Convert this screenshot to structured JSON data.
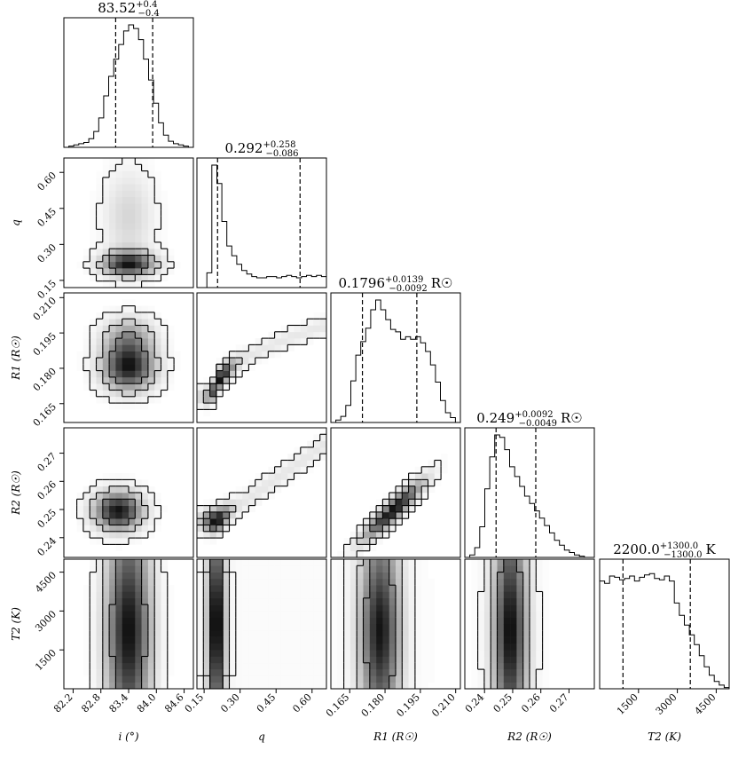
{
  "chart_data": {
    "type": "corner",
    "parameters": [
      {
        "key": "i",
        "axis_label": "i (°)",
        "ticks": [
          "82.2",
          "82.8",
          "83.4",
          "84.0",
          "84.6"
        ],
        "tick_values": [
          82.2,
          82.8,
          83.4,
          84.0,
          84.6
        ],
        "range": [
          82.0,
          84.8
        ],
        "title": {
          "base": "83.52",
          "sup": "+0.4",
          "sub": "−0.4",
          "unit": ""
        },
        "quantiles": [
          83.12,
          83.92
        ],
        "hist": [
          0,
          1,
          2,
          3,
          4,
          7,
          13,
          24,
          42,
          58,
          72,
          84,
          95,
          100,
          97,
          88,
          72,
          55,
          36,
          20,
          10,
          5,
          3,
          2,
          1,
          0
        ]
      },
      {
        "key": "q",
        "axis_label": "q",
        "ticks": [
          "0.15",
          "0.30",
          "0.45",
          "0.60"
        ],
        "tick_values": [
          0.15,
          0.3,
          0.45,
          0.6
        ],
        "range": [
          0.12,
          0.66
        ],
        "title": {
          "base": "0.292",
          "sup": "+0.258",
          "sub": "−0.086",
          "unit": ""
        },
        "quantiles": [
          0.206,
          0.55
        ],
        "hist": [
          0,
          0,
          12,
          100,
          85,
          54,
          34,
          26,
          19,
          14,
          11,
          9,
          8,
          8,
          9,
          9,
          8,
          9,
          10,
          9,
          8,
          9,
          10,
          9,
          10,
          9
        ]
      },
      {
        "key": "R1",
        "axis_label": "R1 (R☉)",
        "ticks": [
          "0.165",
          "0.180",
          "0.195",
          "0.210"
        ],
        "tick_values": [
          0.165,
          0.18,
          0.195,
          0.21
        ],
        "range": [
          0.157,
          0.212
        ],
        "title": {
          "base": "0.1796",
          "sup": "+0.0139",
          "sub": "−0.0092",
          "unit": "R☉"
        },
        "quantiles": [
          0.1704,
          0.1935
        ],
        "hist": [
          0,
          2,
          5,
          14,
          34,
          55,
          66,
          77,
          92,
          100,
          92,
          84,
          76,
          74,
          68,
          70,
          68,
          70,
          65,
          58,
          47,
          33,
          18,
          8,
          4,
          0
        ]
      },
      {
        "key": "R2",
        "axis_label": "R2 (R☉)",
        "ticks": [
          "0.24",
          "0.25",
          "0.26",
          "0.27"
        ],
        "tick_values": [
          0.24,
          0.25,
          0.26,
          0.27
        ],
        "range": [
          0.233,
          0.279
        ],
        "title": {
          "base": "0.249",
          "sup": "+0.0092",
          "sub": "−0.0049",
          "unit": "R☉"
        },
        "quantiles": [
          0.2441,
          0.2582
        ],
        "hist": [
          0,
          2,
          8,
          25,
          56,
          82,
          100,
          98,
          88,
          74,
          66,
          58,
          50,
          44,
          38,
          32,
          26,
          20,
          14,
          10,
          6,
          4,
          2,
          1,
          0,
          0
        ]
      },
      {
        "key": "T2",
        "axis_label": "T2 (K)",
        "ticks": [
          "1500",
          "3000",
          "4500"
        ],
        "tick_values": [
          1500,
          3000,
          4500
        ],
        "range": [
          0,
          5000
        ],
        "title": {
          "base": "2200.0",
          "sup": "+1300.0",
          "sub": "−1300.0",
          "unit": "K"
        },
        "quantiles": [
          900,
          3500
        ],
        "hist": [
          88,
          86,
          92,
          91,
          89,
          90,
          92,
          88,
          91,
          93,
          94,
          90,
          89,
          92,
          88,
          70,
          60,
          52,
          44,
          36,
          27,
          18,
          11,
          6,
          3,
          1
        ]
      }
    ],
    "contour_levels": 3,
    "grid": false
  }
}
